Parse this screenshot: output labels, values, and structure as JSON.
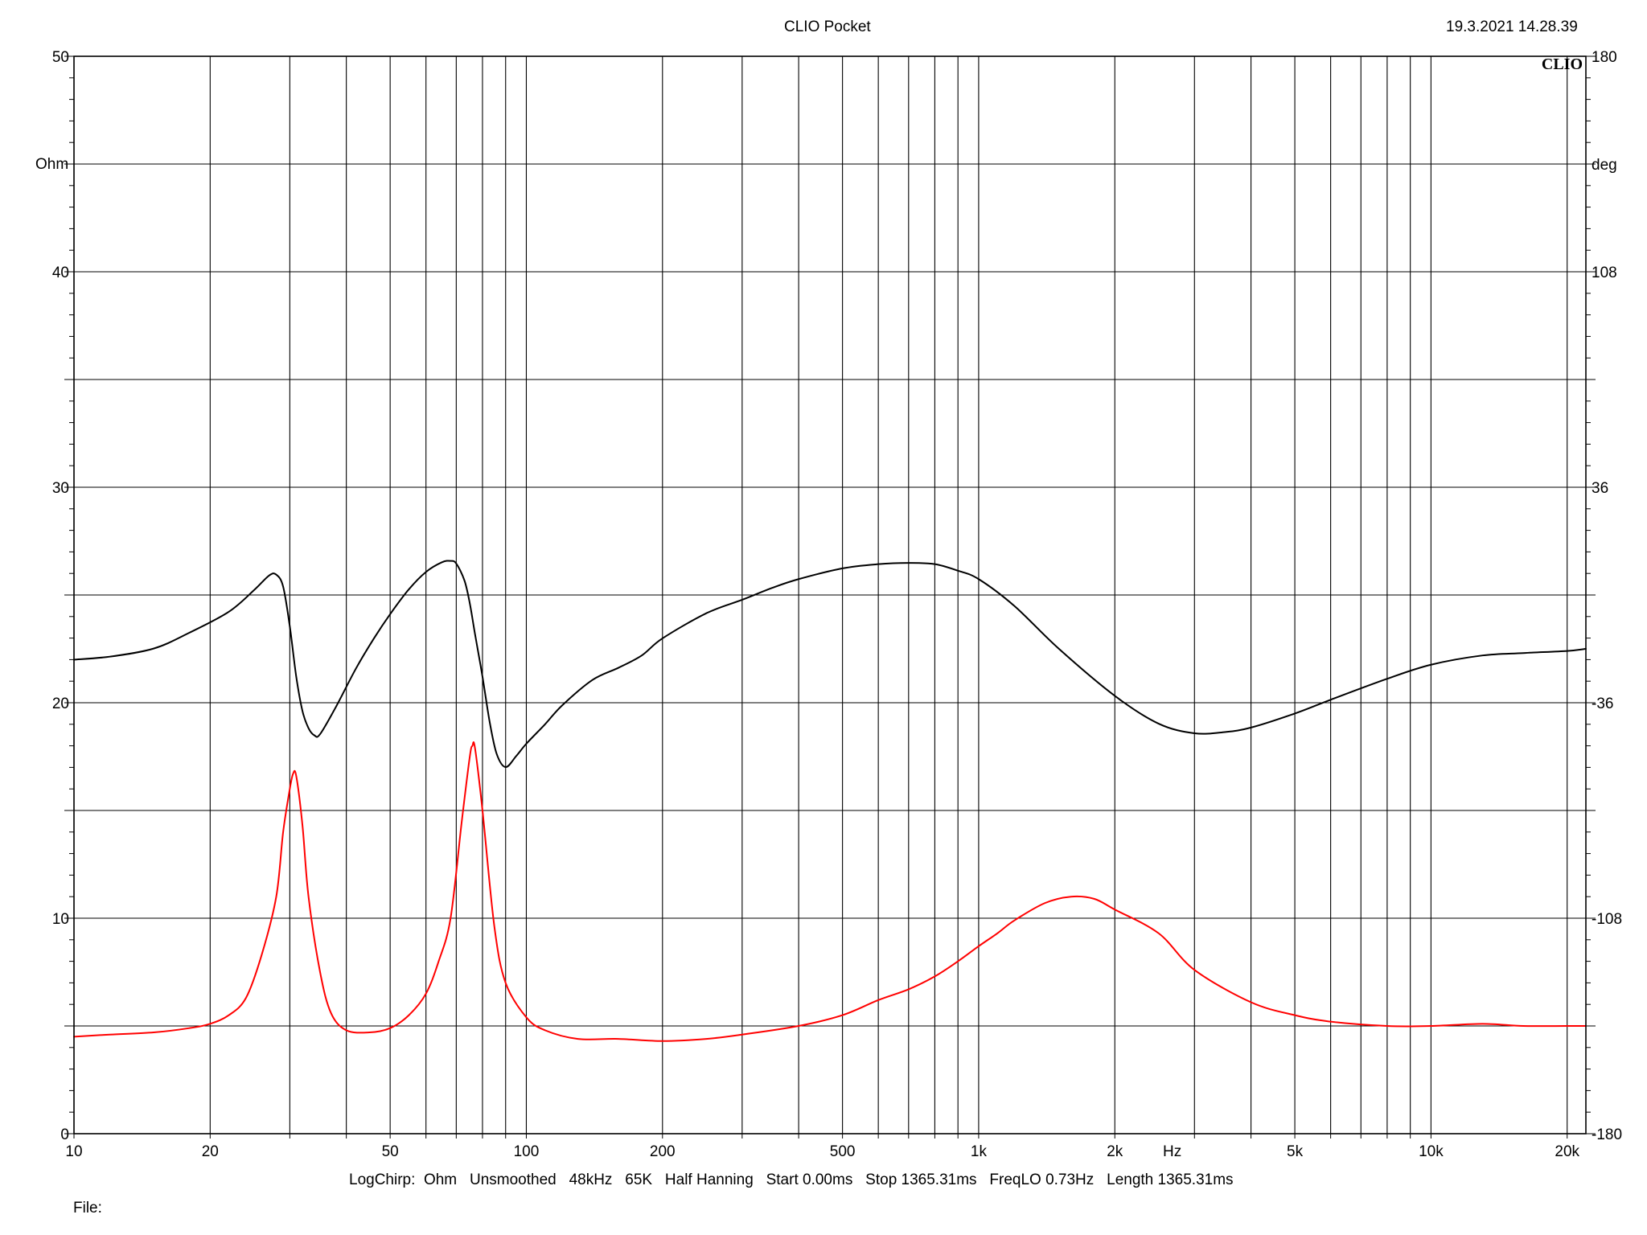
{
  "header": {
    "title": "CLIO Pocket",
    "timestamp": "19.3.2021 14.28.39",
    "logo": "CLIO"
  },
  "footer": {
    "settings": [
      "LogChirp:",
      "Ohm",
      "Unsmoothed",
      "48kHz",
      "65K",
      "Half Hanning",
      "Start 0.00ms",
      "Stop 1365.31ms",
      "FreqLO 0.73Hz",
      "Length 1365.31ms"
    ],
    "file_label": "File:"
  },
  "chart_data": {
    "type": "line",
    "x_scale": "log",
    "xlim": [
      10,
      22000
    ],
    "ylim_left": [
      0,
      50
    ],
    "ylim_right": [
      -180,
      180
    ],
    "left_unit": "Ohm",
    "right_unit": "deg",
    "x_unit": "Hz",
    "grid": true,
    "x_tick_labels": [
      {
        "value": 10,
        "label": "10"
      },
      {
        "value": 20,
        "label": "20"
      },
      {
        "value": 50,
        "label": "50"
      },
      {
        "value": 100,
        "label": "100"
      },
      {
        "value": 200,
        "label": "200"
      },
      {
        "value": 500,
        "label": "500"
      },
      {
        "value": 1000,
        "label": "1k"
      },
      {
        "value": 2000,
        "label": "2k"
      },
      {
        "value": 5000,
        "label": "5k"
      },
      {
        "value": 10000,
        "label": "10k"
      },
      {
        "value": 20000,
        "label": "20k"
      }
    ],
    "x_gridlines": [
      10,
      20,
      30,
      40,
      50,
      60,
      70,
      80,
      90,
      100,
      200,
      300,
      400,
      500,
      600,
      700,
      800,
      900,
      1000,
      2000,
      3000,
      4000,
      5000,
      6000,
      7000,
      8000,
      9000,
      10000,
      20000
    ],
    "y_left_ticks": [
      0,
      10,
      20,
      30,
      40,
      50
    ],
    "y_right_ticks": [
      -180,
      -108,
      -36,
      36,
      108,
      180
    ],
    "series": [
      {
        "color": "#000000",
        "axis": "right",
        "points": [
          [
            10,
            -21.6
          ],
          [
            12,
            -20.6
          ],
          [
            15,
            -17.9
          ],
          [
            18,
            -12.6
          ],
          [
            22,
            -5.6
          ],
          [
            25,
            1.6
          ],
          [
            27,
            6.5
          ],
          [
            28,
            6.8
          ],
          [
            29,
            2.8
          ],
          [
            30,
            -10.5
          ],
          [
            31,
            -27.3
          ],
          [
            32,
            -38.8
          ],
          [
            33,
            -44.5
          ],
          [
            34,
            -46.9
          ],
          [
            35,
            -46.5
          ],
          [
            38,
            -37.2
          ],
          [
            42,
            -24.6
          ],
          [
            46,
            -14.6
          ],
          [
            50,
            -6.4
          ],
          [
            55,
            1.9
          ],
          [
            60,
            7.7
          ],
          [
            65,
            10.9
          ],
          [
            68,
            11.4
          ],
          [
            70,
            10.5
          ],
          [
            73,
            4.8
          ],
          [
            75,
            -2.8
          ],
          [
            77,
            -13.0
          ],
          [
            80,
            -27.3
          ],
          [
            83,
            -42.5
          ],
          [
            86,
            -53.1
          ],
          [
            90,
            -57.5
          ],
          [
            95,
            -53.8
          ],
          [
            100,
            -49.7
          ],
          [
            110,
            -43.2
          ],
          [
            120,
            -36.9
          ],
          [
            140,
            -28.4
          ],
          [
            160,
            -24.3
          ],
          [
            180,
            -20.2
          ],
          [
            200,
            -14.5
          ],
          [
            250,
            -6.1
          ],
          [
            300,
            -1.6
          ],
          [
            350,
            2.4
          ],
          [
            400,
            5.3
          ],
          [
            500,
            8.9
          ],
          [
            600,
            10.3
          ],
          [
            700,
            10.7
          ],
          [
            800,
            10.3
          ],
          [
            900,
            8.1
          ],
          [
            1000,
            5.3
          ],
          [
            1200,
            -3.7
          ],
          [
            1500,
            -17.8
          ],
          [
            2000,
            -33.7
          ],
          [
            2500,
            -43.0
          ],
          [
            3000,
            -46.2
          ],
          [
            3500,
            -45.8
          ],
          [
            4000,
            -44.3
          ],
          [
            5000,
            -39.6
          ],
          [
            6000,
            -35.0
          ],
          [
            8000,
            -28.0
          ],
          [
            10000,
            -23.3
          ],
          [
            13000,
            -20.2
          ],
          [
            16000,
            -19.4
          ],
          [
            20000,
            -18.7
          ],
          [
            22000,
            -18.0
          ]
        ]
      },
      {
        "color": "#ff0000",
        "axis": "left",
        "points": [
          [
            10,
            4.5
          ],
          [
            12,
            4.6
          ],
          [
            15,
            4.7
          ],
          [
            18,
            4.9
          ],
          [
            20,
            5.1
          ],
          [
            22,
            5.5
          ],
          [
            24,
            6.3
          ],
          [
            26,
            8.3
          ],
          [
            28,
            11.0
          ],
          [
            29,
            14.0
          ],
          [
            30,
            16.0
          ],
          [
            30.5,
            16.7
          ],
          [
            31,
            16.6
          ],
          [
            32,
            14.3
          ],
          [
            33,
            11.0
          ],
          [
            35,
            7.5
          ],
          [
            37,
            5.6
          ],
          [
            40,
            4.8
          ],
          [
            45,
            4.7
          ],
          [
            50,
            4.9
          ],
          [
            55,
            5.5
          ],
          [
            60,
            6.5
          ],
          [
            64,
            8.0
          ],
          [
            68,
            10.0
          ],
          [
            72,
            14.5
          ],
          [
            75,
            17.5
          ],
          [
            76,
            18.0
          ],
          [
            77,
            17.9
          ],
          [
            80,
            15.0
          ],
          [
            85,
            9.6
          ],
          [
            90,
            7.0
          ],
          [
            100,
            5.4
          ],
          [
            110,
            4.8
          ],
          [
            130,
            4.4
          ],
          [
            160,
            4.4
          ],
          [
            200,
            4.3
          ],
          [
            250,
            4.4
          ],
          [
            300,
            4.6
          ],
          [
            400,
            5.0
          ],
          [
            500,
            5.5
          ],
          [
            600,
            6.2
          ],
          [
            700,
            6.7
          ],
          [
            800,
            7.3
          ],
          [
            900,
            8.0
          ],
          [
            1000,
            8.7
          ],
          [
            1100,
            9.3
          ],
          [
            1200,
            9.9
          ],
          [
            1400,
            10.7
          ],
          [
            1600,
            11.0
          ],
          [
            1800,
            10.9
          ],
          [
            2000,
            10.4
          ],
          [
            2500,
            9.3
          ],
          [
            3000,
            7.6
          ],
          [
            4000,
            6.1
          ],
          [
            5000,
            5.5
          ],
          [
            6000,
            5.2
          ],
          [
            8000,
            5.0
          ],
          [
            10000,
            5.0
          ],
          [
            13000,
            5.1
          ],
          [
            16000,
            5.0
          ],
          [
            20000,
            5.0
          ],
          [
            22000,
            5.0
          ]
        ]
      }
    ]
  }
}
